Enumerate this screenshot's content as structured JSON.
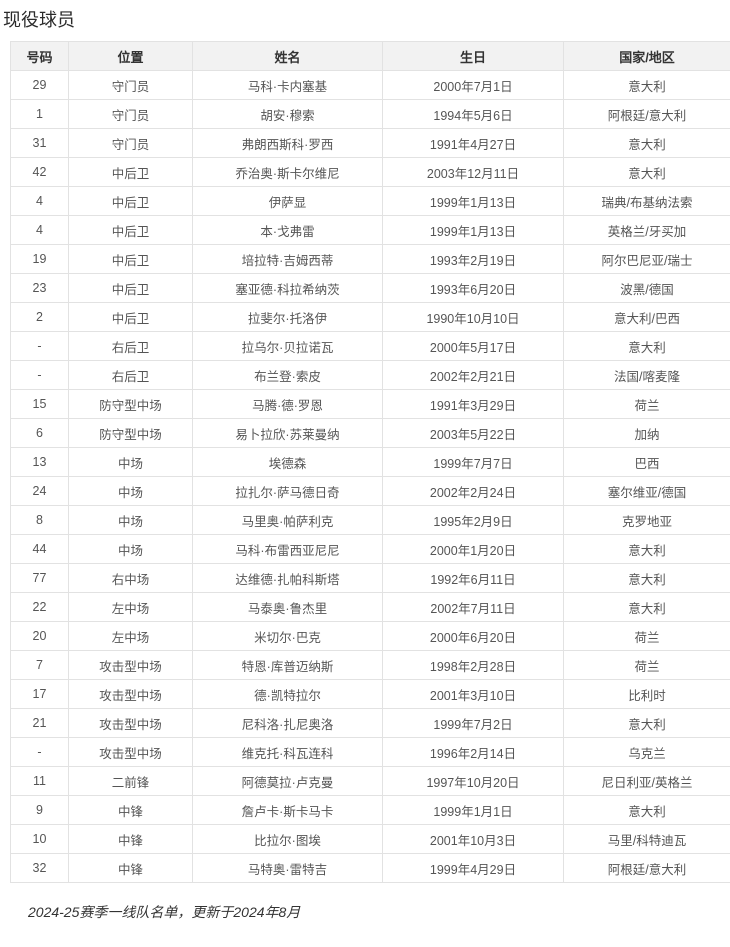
{
  "page": {
    "title": "现役球员",
    "footer_note": "2024-25赛季一线队名单，更新于2024年8月"
  },
  "colors": {
    "header_bg": "#f2f2f2",
    "border": "#e2e2e2",
    "header_text": "#333333",
    "body_text": "#555555"
  },
  "table": {
    "columns": [
      "号码",
      "位置",
      "姓名",
      "生日",
      "国家/地区"
    ],
    "rows": [
      [
        "29",
        "守门员",
        "马科·卡内塞基",
        "2000年7月1日",
        "意大利"
      ],
      [
        "1",
        "守门员",
        "胡安·穆索",
        "1994年5月6日",
        "阿根廷/意大利"
      ],
      [
        "31",
        "守门员",
        "弗朗西斯科·罗西",
        "1991年4月27日",
        "意大利"
      ],
      [
        "42",
        "中后卫",
        "乔治奥·斯卡尔维尼",
        "2003年12月11日",
        "意大利"
      ],
      [
        "4",
        "中后卫",
        "伊萨显",
        "1999年1月13日",
        "瑞典/布基纳法索"
      ],
      [
        "4",
        "中后卫",
        "本·戈弗雷",
        "1999年1月13日",
        "英格兰/牙买加"
      ],
      [
        "19",
        "中后卫",
        "培拉特·吉姆西蒂",
        "1993年2月19日",
        "阿尔巴尼亚/瑞士"
      ],
      [
        "23",
        "中后卫",
        "塞亚德·科拉希纳茨",
        "1993年6月20日",
        "波黑/德国"
      ],
      [
        "2",
        "中后卫",
        "拉斐尔·托洛伊",
        "1990年10月10日",
        "意大利/巴西"
      ],
      [
        "-",
        "右后卫",
        "拉乌尔·贝拉诺瓦",
        "2000年5月17日",
        "意大利"
      ],
      [
        "-",
        "右后卫",
        "布兰登·索皮",
        "2002年2月21日",
        "法国/喀麦隆"
      ],
      [
        "15",
        "防守型中场",
        "马腾·德·罗恩",
        "1991年3月29日",
        "荷兰"
      ],
      [
        "6",
        "防守型中场",
        "易卜拉欣·苏莱曼纳",
        "2003年5月22日",
        "加纳"
      ],
      [
        "13",
        "中场",
        "埃德森",
        "1999年7月7日",
        "巴西"
      ],
      [
        "24",
        "中场",
        "拉扎尔·萨马德日奇",
        "2002年2月24日",
        "塞尔维亚/德国"
      ],
      [
        "8",
        "中场",
        "马里奥·帕萨利克",
        "1995年2月9日",
        "克罗地亚"
      ],
      [
        "44",
        "中场",
        "马科·布雷西亚尼尼",
        "2000年1月20日",
        "意大利"
      ],
      [
        "77",
        "右中场",
        "达维德·扎帕科斯塔",
        "1992年6月11日",
        "意大利"
      ],
      [
        "22",
        "左中场",
        "马泰奥·鲁杰里",
        "2002年7月11日",
        "意大利"
      ],
      [
        "20",
        "左中场",
        "米切尔·巴克",
        "2000年6月20日",
        "荷兰"
      ],
      [
        "7",
        "攻击型中场",
        "特恩·库普迈纳斯",
        "1998年2月28日",
        "荷兰"
      ],
      [
        "17",
        "攻击型中场",
        "德·凯特拉尔",
        "2001年3月10日",
        "比利时"
      ],
      [
        "21",
        "攻击型中场",
        "尼科洛·扎尼奥洛",
        "1999年7月2日",
        "意大利"
      ],
      [
        "-",
        "攻击型中场",
        "维克托·科瓦连科",
        "1996年2月14日",
        "乌克兰"
      ],
      [
        "11",
        "二前锋",
        "阿德莫拉·卢克曼",
        "1997年10月20日",
        "尼日利亚/英格兰"
      ],
      [
        "9",
        "中锋",
        "詹卢卡·斯卡马卡",
        "1999年1月1日",
        "意大利"
      ],
      [
        "10",
        "中锋",
        "比拉尔·图埃",
        "2001年10月3日",
        "马里/科特迪瓦"
      ],
      [
        "32",
        "中锋",
        "马特奥·雷特吉",
        "1999年4月29日",
        "阿根廷/意大利"
      ]
    ]
  }
}
